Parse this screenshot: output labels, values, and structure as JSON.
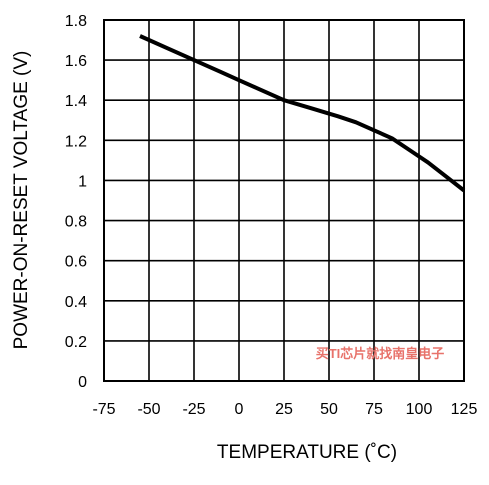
{
  "chart_data": {
    "type": "line",
    "xlabel": "TEMPERATURE (˚C)",
    "ylabel": "POWER-ON-RESET VOLTAGE (V)",
    "xlim": [
      -75,
      125
    ],
    "ylim": [
      0,
      1.8
    ],
    "x_ticks": [
      "-75",
      "-50",
      "-25",
      "0",
      "25",
      "50",
      "75",
      "100",
      "125"
    ],
    "y_ticks": [
      "0",
      "0.2",
      "0.4",
      "0.6",
      "0.8",
      "1",
      "1.2",
      "1.4",
      "1.6",
      "1.8"
    ],
    "grid": true,
    "series": [
      {
        "color": "#000000",
        "x": [
          -55,
          -40,
          -25,
          -10,
          0,
          10,
          25,
          40,
          55,
          65,
          75,
          85,
          95,
          105,
          115,
          125
        ],
        "y": [
          1.72,
          1.66,
          1.6,
          1.54,
          1.5,
          1.46,
          1.4,
          1.36,
          1.32,
          1.29,
          1.25,
          1.21,
          1.15,
          1.09,
          1.02,
          0.95
        ]
      }
    ]
  },
  "watermark": "买TI芯片就找南皇电子"
}
